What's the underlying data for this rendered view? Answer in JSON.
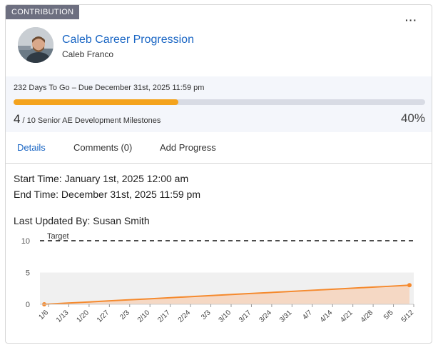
{
  "badge": "CONTRIBUTION",
  "menu_icon": "more-horizontal-icon",
  "header": {
    "title": "Caleb Career Progression",
    "owner": "Caleb Franco"
  },
  "progress": {
    "due_text": "232 Days To Go – Due December 31st, 2025 11:59 pm",
    "current": "4",
    "total_text": "/ 10 Senior AE Development Milestones",
    "percent_text": "40%",
    "fraction": 0.4,
    "accent_color": "#f4a31d"
  },
  "tabs": [
    {
      "label": "Details",
      "active": true
    },
    {
      "label": "Comments (0)",
      "active": false
    },
    {
      "label": "Add Progress",
      "active": false
    }
  ],
  "details": {
    "start": "Start Time: January 1st, 2025 12:00 am",
    "end": "End Time: December 31st, 2025 11:59 pm",
    "updated": "Last Updated By: Susan Smith"
  },
  "chart_data": {
    "type": "area",
    "x": [
      "1/6",
      "1/13",
      "1/20",
      "1/27",
      "2/3",
      "2/10",
      "2/17",
      "2/24",
      "3/3",
      "3/10",
      "3/17",
      "3/24",
      "3/31",
      "4/7",
      "4/14",
      "4/21",
      "4/28",
      "5/5",
      "5/12"
    ],
    "series": [
      {
        "values": [
          0,
          0.17,
          0.33,
          0.5,
          0.67,
          0.83,
          1.0,
          1.17,
          1.33,
          1.5,
          1.67,
          1.83,
          2.0,
          2.17,
          2.33,
          2.5,
          2.67,
          2.83,
          3.0
        ],
        "color": "#f58a2e"
      }
    ],
    "target": {
      "label": "Target",
      "value": 10
    },
    "ylim": [
      0,
      10
    ],
    "yticks": [
      0,
      5,
      10
    ],
    "grid": false
  }
}
